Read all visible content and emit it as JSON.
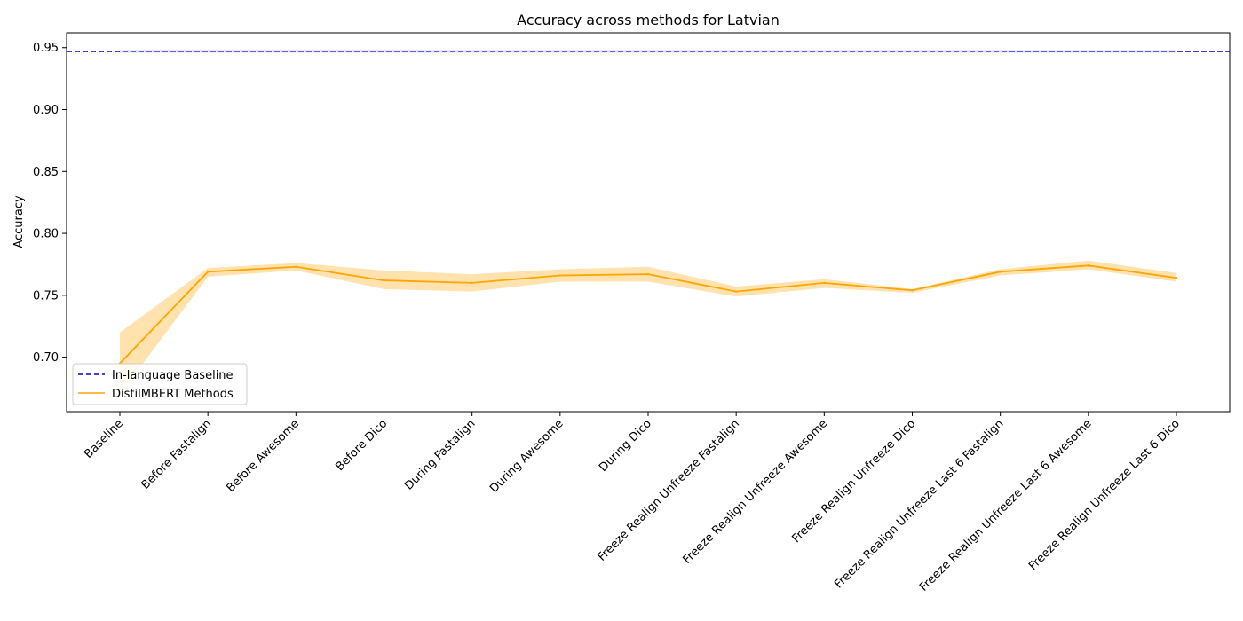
{
  "chart_data": {
    "type": "line",
    "title": "Accuracy across methods for Latvian",
    "xlabel": "",
    "ylabel": "Accuracy",
    "ylim": [
      0.656,
      0.962
    ],
    "yticks": [
      "0.70",
      "0.75",
      "0.80",
      "0.85",
      "0.90",
      "0.95"
    ],
    "categories": [
      "Baseline",
      "Before Fastalign",
      "Before Awesome",
      "Before Dico",
      "During Fastalign",
      "During Awesome",
      "During Dico",
      "Freeze Realign Unfreeze Fastalign",
      "Freeze Realign Unfreeze Awesome",
      "Freeze Realign Unfreeze Dico",
      "Freeze Realign Unfreeze Last 6 Fastalign",
      "Freeze Realign Unfreeze Last 6 Awesome",
      "Freeze Realign Unfreeze Last 6 Dico"
    ],
    "baseline": {
      "name": "In-language Baseline",
      "value": 0.947,
      "color": "#0000cc",
      "style": "dashed"
    },
    "series": [
      {
        "name": "DistilMBERT Methods",
        "color": "#ffa500",
        "band_color": "#ffa500",
        "values": [
          0.695,
          0.769,
          0.773,
          0.762,
          0.76,
          0.766,
          0.767,
          0.753,
          0.76,
          0.754,
          0.769,
          0.774,
          0.764
        ],
        "lower": [
          0.67,
          0.765,
          0.77,
          0.755,
          0.753,
          0.761,
          0.761,
          0.749,
          0.756,
          0.752,
          0.766,
          0.771,
          0.761
        ],
        "upper": [
          0.72,
          0.772,
          0.776,
          0.77,
          0.767,
          0.771,
          0.773,
          0.757,
          0.763,
          0.755,
          0.771,
          0.778,
          0.768
        ]
      }
    ],
    "grid": false,
    "legend_position": "lower-left"
  }
}
